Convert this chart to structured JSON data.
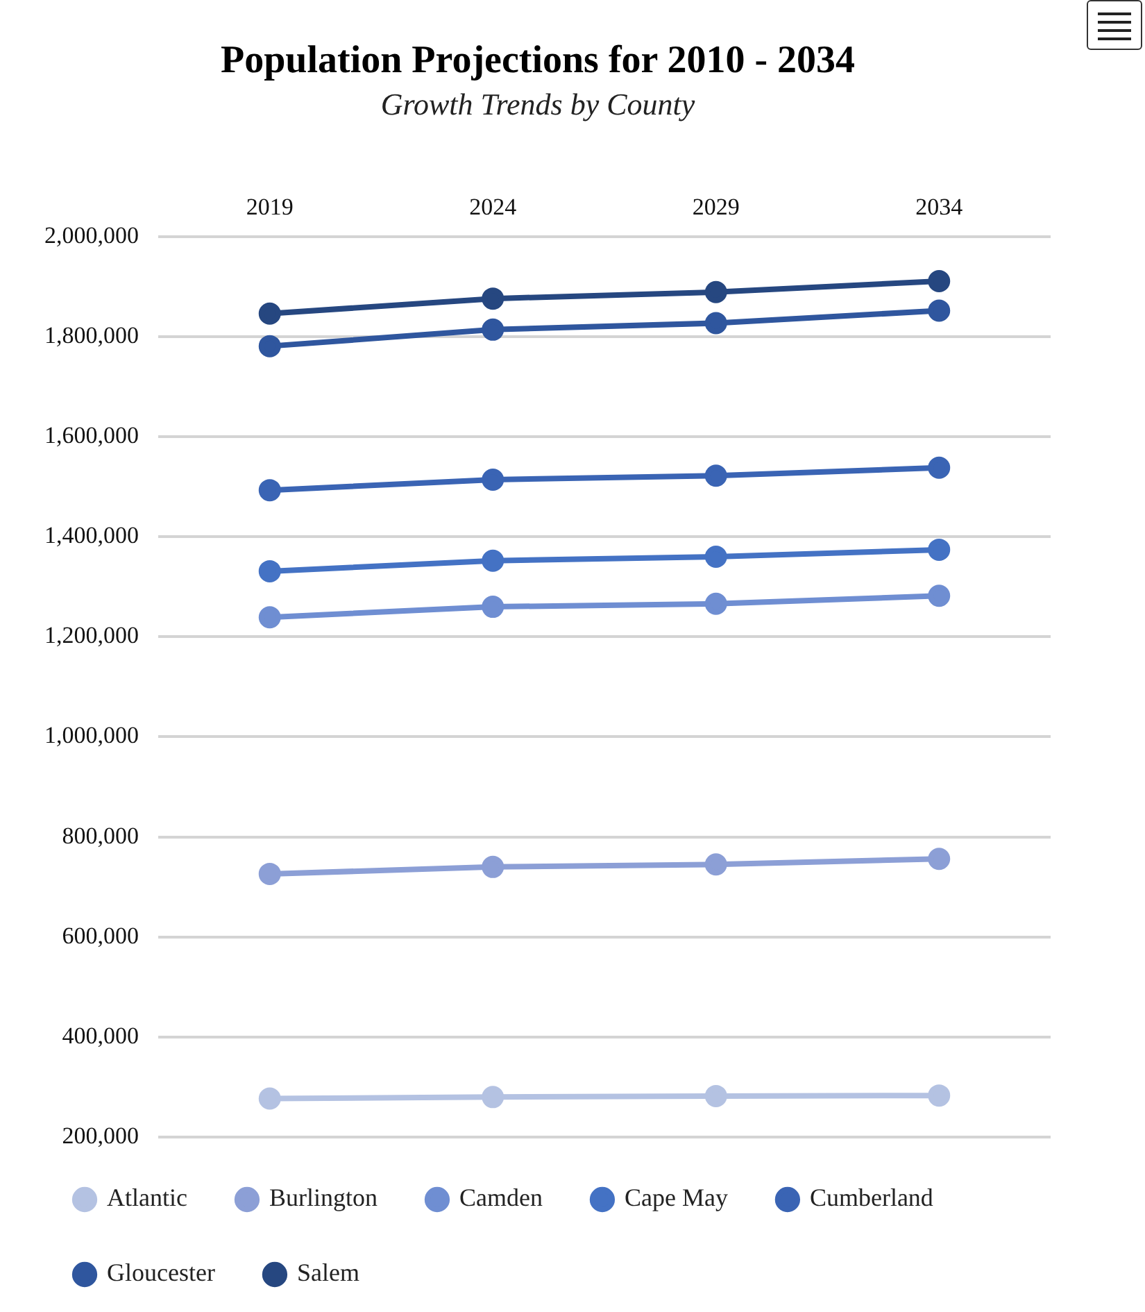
{
  "chart_data": {
    "type": "line",
    "title": "Population Projections for 2010 - 2034",
    "subtitle": "Growth Trends by County",
    "categories": [
      "2019",
      "2024",
      "2029",
      "2034"
    ],
    "series": [
      {
        "name": "Atlantic",
        "color": "#b4c2e2",
        "values": [
          277000,
          280000,
          282000,
          283000
        ]
      },
      {
        "name": "Burlington",
        "color": "#8c9fd6",
        "values": [
          726000,
          740000,
          745000,
          756000
        ]
      },
      {
        "name": "Camden",
        "color": "#6f8ed2",
        "values": [
          1239000,
          1260000,
          1266000,
          1282000
        ]
      },
      {
        "name": "Cape May",
        "color": "#4472c4",
        "values": [
          1331000,
          1352000,
          1360000,
          1374000
        ]
      },
      {
        "name": "Cumberland",
        "color": "#3a64b4",
        "values": [
          1493000,
          1514000,
          1522000,
          1538000
        ]
      },
      {
        "name": "Gloucester",
        "color": "#2f569e",
        "values": [
          1781000,
          1814000,
          1827000,
          1852000
        ]
      },
      {
        "name": "Salem",
        "color": "#264780",
        "values": [
          1846000,
          1876000,
          1889000,
          1911000
        ]
      }
    ],
    "ylim": [
      200000,
      2000000
    ],
    "yticks": [
      {
        "value": 200000,
        "label": "200,000"
      },
      {
        "value": 400000,
        "label": "400,000"
      },
      {
        "value": 600000,
        "label": "600,000"
      },
      {
        "value": 800000,
        "label": "800,000"
      },
      {
        "value": 1000000,
        "label": "1,000,000"
      },
      {
        "value": 1200000,
        "label": "1,200,000"
      },
      {
        "value": 1400000,
        "label": "1,400,000"
      },
      {
        "value": 1600000,
        "label": "1,600,000"
      },
      {
        "value": 1800000,
        "label": "1,800,000"
      },
      {
        "value": 2000000,
        "label": "2,000,000"
      }
    ],
    "grid": "y",
    "legend": "bottom",
    "marker": "circle",
    "line_style": "solid"
  }
}
